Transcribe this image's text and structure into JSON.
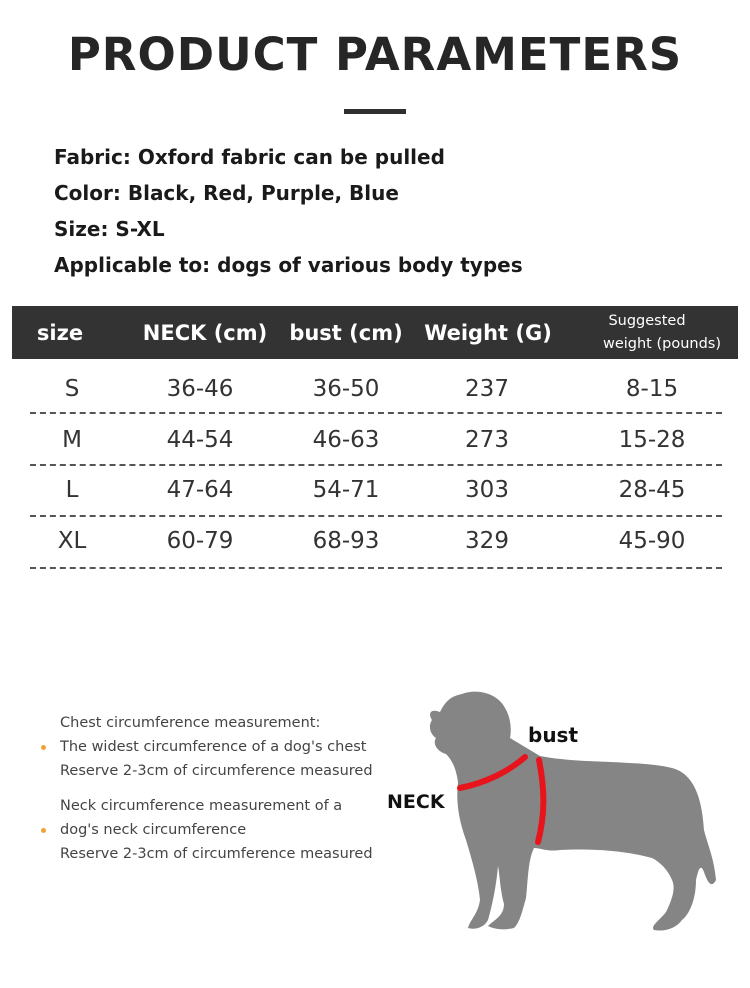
{
  "title": "PRODUCT PARAMETERS",
  "specs": [
    "Fabric: Oxford fabric can be pulled",
    "Color: Black, Red, Purple, Blue",
    "Size: S-XL",
    "Applicable to: dogs of various body types"
  ],
  "table": {
    "headers": [
      "size",
      "NECK (cm)",
      "bust (cm)",
      "Weight (G)"
    ],
    "suggested_header": [
      "Suggested",
      "weight (pounds)"
    ],
    "rows": [
      [
        "S",
        "36-46",
        "36-50",
        "237",
        "8-15"
      ],
      [
        "M",
        "44-54",
        "46-63",
        "273",
        "15-28"
      ],
      [
        "L",
        "47-64",
        "54-71",
        "303",
        "28-45"
      ],
      [
        "XL",
        "60-79",
        "68-93",
        "329",
        "45-90"
      ]
    ]
  },
  "notes": {
    "chest": [
      "Chest circumference measurement:",
      "The widest circumference of a dog's chest",
      "Reserve 2-3cm of circumference measured"
    ],
    "neck": [
      "Neck circumference measurement of a",
      "dog's neck circumference",
      "Reserve 2-3cm of circumference measured"
    ]
  },
  "diagram": {
    "bust_label": "bust",
    "neck_label": "NECK",
    "strap_color": "#e8141c",
    "dog_color": "#858585"
  },
  "colors": {
    "header_bg": "#333333",
    "bullet": "#f0a23a"
  }
}
